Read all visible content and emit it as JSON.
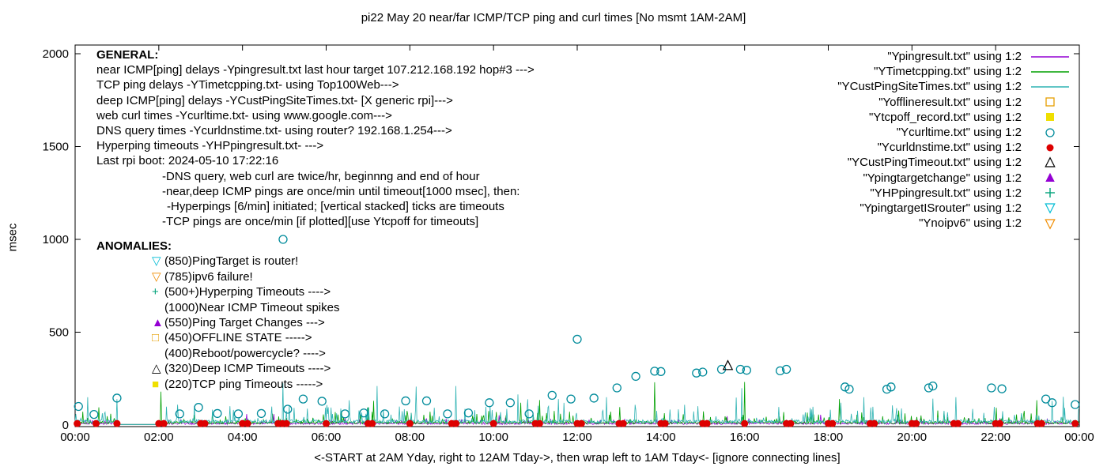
{
  "title": "pi22 May 20  near/far ICMP/TCP ping and curl times [No msmt 1AM-2AM]",
  "axes": {
    "ylabel": "msec",
    "xlabel": "<-START at 2AM Yday, right to 12AM Tday->, then wrap left to 1AM Tday<- [ignore connecting lines]"
  },
  "general": {
    "heading": "GENERAL:",
    "lines": [
      {
        "indent": 0,
        "text": "near ICMP[ping] delays -Ypingresult.txt last hour target 107.212.168.192 hop#3 --->"
      },
      {
        "indent": 0,
        "text": "TCP ping delays -YTimetcpping.txt- using Top100Web--->"
      },
      {
        "indent": 0,
        "text": "deep ICMP[ping] delays -YCustPingSiteTimes.txt- [X generic rpi]--->"
      },
      {
        "indent": 0,
        "text": "web curl times -Ycurltime.txt- using www.google.com--->"
      },
      {
        "indent": 0,
        "text": "DNS query times -Ycurldnstime.txt- using router? 192.168.1.254--->"
      },
      {
        "indent": 0,
        "text": "Hyperping timeouts -YHPpingresult.txt- --->"
      },
      {
        "indent": 0,
        "text": "Last rpi boot: 2024-05-10 17:22:16"
      },
      {
        "indent": 1,
        "text": "-DNS query, web curl are twice/hr, beginnng and end of hour"
      },
      {
        "indent": 1,
        "text": "-near,deep ICMP pings are once/min until timeout[1000 msec], then:"
      },
      {
        "indent": 2,
        "text": "-Hyperpings [6/min] initiated; [vertical stacked] ticks are timeouts"
      },
      {
        "indent": 1,
        "text": "-TCP pings are once/min [if plotted][use Ytcpoff for timeouts]"
      }
    ]
  },
  "anomalies": {
    "heading": "ANOMALIES:",
    "items": [
      {
        "icon": "triangle-down-open",
        "color": "#00BCD4",
        "text": "(850)PingTarget is router!"
      },
      {
        "icon": "triangle-down-open",
        "color": "#F08C00",
        "text": "(785)ipv6 failure!"
      },
      {
        "icon": "plus",
        "color": "#00A27A",
        "text": "(500+)Hyperping Timeouts ---->"
      },
      {
        "icon": "none",
        "color": "",
        "text": "(1000)Near ICMP Timeout spikes"
      },
      {
        "icon": "triangle-up-filled",
        "color": "#9400D3",
        "text": "(550)Ping Target Changes --->"
      },
      {
        "icon": "square-open",
        "color": "#E69F00",
        "text": "(450)OFFLINE STATE ----->"
      },
      {
        "icon": "none",
        "color": "",
        "text": "(400)Reboot/powercycle? ---->"
      },
      {
        "icon": "triangle-up-open",
        "color": "#000000",
        "text": "(320)Deep ICMP Timeouts ---->"
      },
      {
        "icon": "square-filled",
        "color": "#EFDF00",
        "text": "(220)TCP ping Timeouts ----->"
      }
    ]
  },
  "legend": {
    "entries": [
      {
        "label": "\"Ypingresult.txt\" using 1:2",
        "symbol": "line",
        "color": "#9400D3"
      },
      {
        "label": "\"YTimetcpping.txt\" using 1:2",
        "symbol": "line",
        "color": "#00A000"
      },
      {
        "label": "\"YCustPingSiteTimes.txt\" using 1:2",
        "symbol": "line",
        "color": "#2FB3B3"
      },
      {
        "label": "\"Yofflineresult.txt\" using 1:2",
        "symbol": "square-open",
        "color": "#E69F00"
      },
      {
        "label": "\"Ytcpoff_record.txt\" using 1:2",
        "symbol": "square-filled",
        "color": "#EFDF00"
      },
      {
        "label": "\"Ycurltime.txt\" using 1:2",
        "symbol": "circle-open",
        "color": "#008B9B"
      },
      {
        "label": "\"Ycurldnstime.txt\" using 1:2",
        "symbol": "circle-filled",
        "color": "#DD0000"
      },
      {
        "label": "\"YCustPingTimeout.txt\" using 1:2",
        "symbol": "triangle-up-open",
        "color": "#000000"
      },
      {
        "label": "\"Ypingtargetchange\" using 1:2",
        "symbol": "triangle-up-filled",
        "color": "#9400D3"
      },
      {
        "label": "\"YHPpingresult.txt\" using 1:2",
        "symbol": "plus",
        "color": "#00A27A"
      },
      {
        "label": "\"YpingtargetISrouter\" using 1:2",
        "symbol": "triangle-down-open",
        "color": "#00BCD4"
      },
      {
        "label": "\"Ynoipv6\" using 1:2",
        "symbol": "triangle-down-open",
        "color": "#F08C00"
      }
    ]
  },
  "chart_data": {
    "type": "line+scatter",
    "title": "pi22 May 20  near/far ICMP/TCP ping and curl times [No msmt 1AM-2AM]",
    "xlabel": "<-START at 2AM Yday, right to 12AM Tday->, then wrap left to 1AM Tday<- [ignore connecting lines]",
    "ylabel": "msec",
    "ylim": [
      0,
      2000
    ],
    "x_hours": [
      0,
      24
    ],
    "grid": false,
    "legend_position": "top-right",
    "x_tick_hours": [
      0,
      2,
      4,
      6,
      8,
      10,
      12,
      14,
      16,
      18,
      20,
      22,
      24
    ],
    "x_tick_labels": [
      "00:00",
      "02:00",
      "04:00",
      "06:00",
      "08:00",
      "10:00",
      "12:00",
      "14:00",
      "16:00",
      "18:00",
      "20:00",
      "22:00",
      "00:00"
    ],
    "y_ticks": [
      0,
      500,
      1000,
      1500,
      2000
    ],
    "no_measurement_window_hours": [
      1.02,
      2.05
    ],
    "series": [
      {
        "name": "Ypingresult.txt",
        "kind": "line-noise",
        "color": "#9400D3",
        "baseline": 3,
        "jitter": 10,
        "amp": 25,
        "seed": 11,
        "spikes": [],
        "flat": [
          [
            1.02,
            2.05
          ]
        ]
      },
      {
        "name": "YTimetcpping.txt",
        "kind": "line-noise",
        "color": "#00A000",
        "baseline": 6,
        "jitter": 14,
        "amp": 60,
        "seed": 22,
        "spikes": [
          [
            2.05,
            180
          ],
          [
            7.0,
            95
          ],
          [
            13.85,
            230
          ],
          [
            16.0,
            232
          ]
        ],
        "flat": [
          [
            1.02,
            2.05
          ]
        ]
      },
      {
        "name": "YCustPingSiteTimes.txt",
        "kind": "line-noise",
        "color": "#2FB3B3",
        "baseline": 10,
        "jitter": 18,
        "amp": 85,
        "seed": 33,
        "spikes": [
          [
            0.3,
            150
          ],
          [
            1.0,
            140
          ],
          [
            4.97,
            225
          ],
          [
            9.1,
            210
          ],
          [
            11.55,
            140
          ],
          [
            12.7,
            150
          ],
          [
            18.3,
            120
          ],
          [
            21.05,
            150
          ],
          [
            23.35,
            130
          ]
        ],
        "flat": [
          [
            1.02,
            2.05
          ]
        ]
      },
      {
        "name": "Yofflineresult.txt",
        "kind": "scatter",
        "marker": "square-open",
        "color": "#E69F00",
        "points": []
      },
      {
        "name": "Ytcpoff_record.txt",
        "kind": "scatter",
        "marker": "square-filled",
        "color": "#EFDF00",
        "points": []
      },
      {
        "name": "Ycurltime.txt",
        "kind": "scatter",
        "marker": "circle-open",
        "color": "#008B9B",
        "points": [
          [
            0.08,
            100
          ],
          [
            0.45,
            57
          ],
          [
            1.0,
            145
          ],
          [
            2.5,
            60
          ],
          [
            2.95,
            95
          ],
          [
            3.4,
            62
          ],
          [
            3.9,
            60
          ],
          [
            4.45,
            62
          ],
          [
            4.97,
            1000
          ],
          [
            5.08,
            85
          ],
          [
            5.45,
            140
          ],
          [
            5.9,
            128
          ],
          [
            6.45,
            60
          ],
          [
            6.9,
            65
          ],
          [
            7.4,
            60
          ],
          [
            7.9,
            130
          ],
          [
            8.4,
            130
          ],
          [
            8.9,
            60
          ],
          [
            9.4,
            65
          ],
          [
            9.9,
            120
          ],
          [
            10.4,
            120
          ],
          [
            10.85,
            60
          ],
          [
            11.4,
            160
          ],
          [
            11.85,
            140
          ],
          [
            12.0,
            462
          ],
          [
            12.4,
            145
          ],
          [
            12.95,
            200
          ],
          [
            13.4,
            262
          ],
          [
            13.85,
            290
          ],
          [
            14.0,
            288
          ],
          [
            14.85,
            280
          ],
          [
            15.0,
            285
          ],
          [
            15.45,
            300
          ],
          [
            15.9,
            300
          ],
          [
            16.05,
            295
          ],
          [
            16.85,
            292
          ],
          [
            17.0,
            300
          ],
          [
            18.4,
            205
          ],
          [
            18.5,
            193
          ],
          [
            19.4,
            193
          ],
          [
            19.5,
            205
          ],
          [
            20.4,
            200
          ],
          [
            20.5,
            210
          ],
          [
            21.9,
            200
          ],
          [
            22.15,
            195
          ],
          [
            23.2,
            140
          ],
          [
            23.35,
            120
          ],
          [
            23.9,
            110
          ]
        ]
      },
      {
        "name": "Ycurldnstime.txt",
        "kind": "scatter",
        "marker": "circle-filled",
        "color": "#DD0000",
        "points": [
          [
            0.05,
            8
          ],
          [
            0.5,
            8
          ],
          [
            1.0,
            8
          ],
          [
            2.0,
            8
          ],
          [
            2.12,
            8
          ],
          [
            3.0,
            8
          ],
          [
            3.1,
            8
          ],
          [
            4.0,
            8
          ],
          [
            4.12,
            8
          ],
          [
            4.85,
            8
          ],
          [
            4.95,
            8
          ],
          [
            5.05,
            8
          ],
          [
            6.0,
            8
          ],
          [
            7.0,
            8
          ],
          [
            7.1,
            8
          ],
          [
            8.0,
            8
          ],
          [
            9.0,
            8
          ],
          [
            9.1,
            8
          ],
          [
            10.0,
            8
          ],
          [
            11.0,
            8
          ],
          [
            11.1,
            8
          ],
          [
            12.0,
            8
          ],
          [
            12.1,
            8
          ],
          [
            13.0,
            8
          ],
          [
            13.1,
            8
          ],
          [
            14.0,
            8
          ],
          [
            14.1,
            8
          ],
          [
            15.0,
            8
          ],
          [
            15.1,
            8
          ],
          [
            16.0,
            8
          ],
          [
            17.0,
            8
          ],
          [
            17.1,
            8
          ],
          [
            18.0,
            8
          ],
          [
            18.1,
            8
          ],
          [
            19.0,
            8
          ],
          [
            19.1,
            8
          ],
          [
            20.0,
            8
          ],
          [
            20.1,
            8
          ],
          [
            21.0,
            8
          ],
          [
            21.1,
            8
          ],
          [
            22.0,
            8
          ],
          [
            22.1,
            8
          ],
          [
            23.0,
            8
          ],
          [
            23.1,
            8
          ],
          [
            23.9,
            8
          ]
        ]
      },
      {
        "name": "YCustPingTimeout.txt",
        "kind": "scatter",
        "marker": "triangle-up-open",
        "color": "#000000",
        "points": [
          [
            15.6,
            320
          ]
        ]
      },
      {
        "name": "Ypingtargetchange",
        "kind": "scatter",
        "marker": "triangle-up-filled",
        "color": "#9400D3",
        "points": []
      },
      {
        "name": "YHPpingresult.txt",
        "kind": "scatter",
        "marker": "plus",
        "color": "#00A27A",
        "points": []
      },
      {
        "name": "YpingtargetISrouter",
        "kind": "scatter",
        "marker": "triangle-down-open",
        "color": "#00BCD4",
        "points": []
      },
      {
        "name": "Ynoipv6",
        "kind": "scatter",
        "marker": "triangle-down-open",
        "color": "#F08C00",
        "points": []
      }
    ]
  }
}
